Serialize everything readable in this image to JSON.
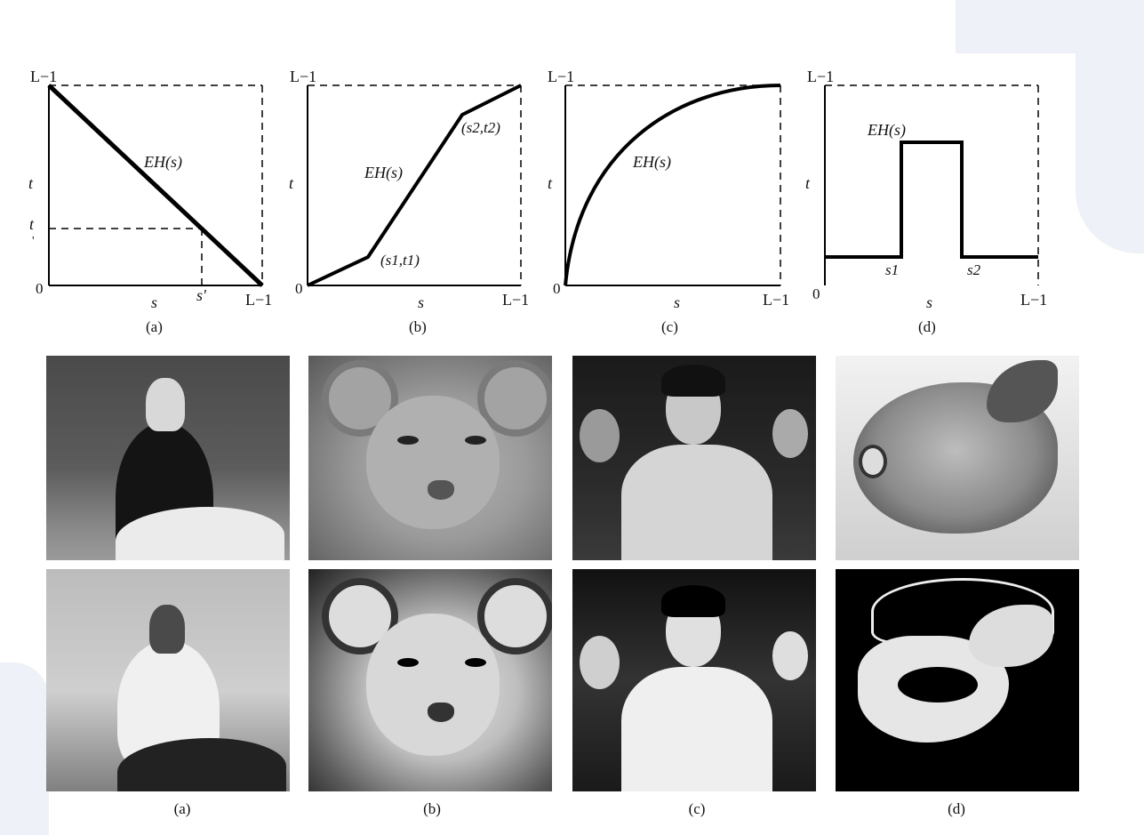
{
  "plots": [
    {
      "id": "a",
      "caption": "(a)",
      "curve_label": "EH(s)",
      "top_label": "L−1",
      "y_label": "t",
      "x_label": "s",
      "origin_label": "0",
      "x_max_label": "L−1",
      "extra": {
        "t_prime": "t",
        "t_prime_mark": "'",
        "s_prime": "s'"
      }
    },
    {
      "id": "b",
      "caption": "(b)",
      "curve_label": "EH(s)",
      "top_label": "L−1",
      "y_label": "t",
      "x_label": "s",
      "origin_label": "0",
      "x_max_label": "L−1",
      "extra": {
        "point1": "(s1,t1)",
        "point2": "(s2,t2)"
      }
    },
    {
      "id": "c",
      "caption": "(c)",
      "curve_label": "EH(s)",
      "top_label": "L−1",
      "y_label": "t",
      "x_label": "s",
      "origin_label": "0",
      "x_max_label": "L−1"
    },
    {
      "id": "d",
      "caption": "(d)",
      "curve_label": "EH(s)",
      "top_label": "L−1",
      "y_label": "t",
      "x_label": "s",
      "origin_label": "0",
      "x_max_label": "L−1",
      "extra": {
        "s1": "s1",
        "s2": "s2"
      }
    }
  ],
  "image_captions": [
    "(a)",
    "(b)",
    "(c)",
    "(d)"
  ],
  "colors": {
    "line": "#000000",
    "background": "#ffffff",
    "decor": "#eef1f7"
  }
}
